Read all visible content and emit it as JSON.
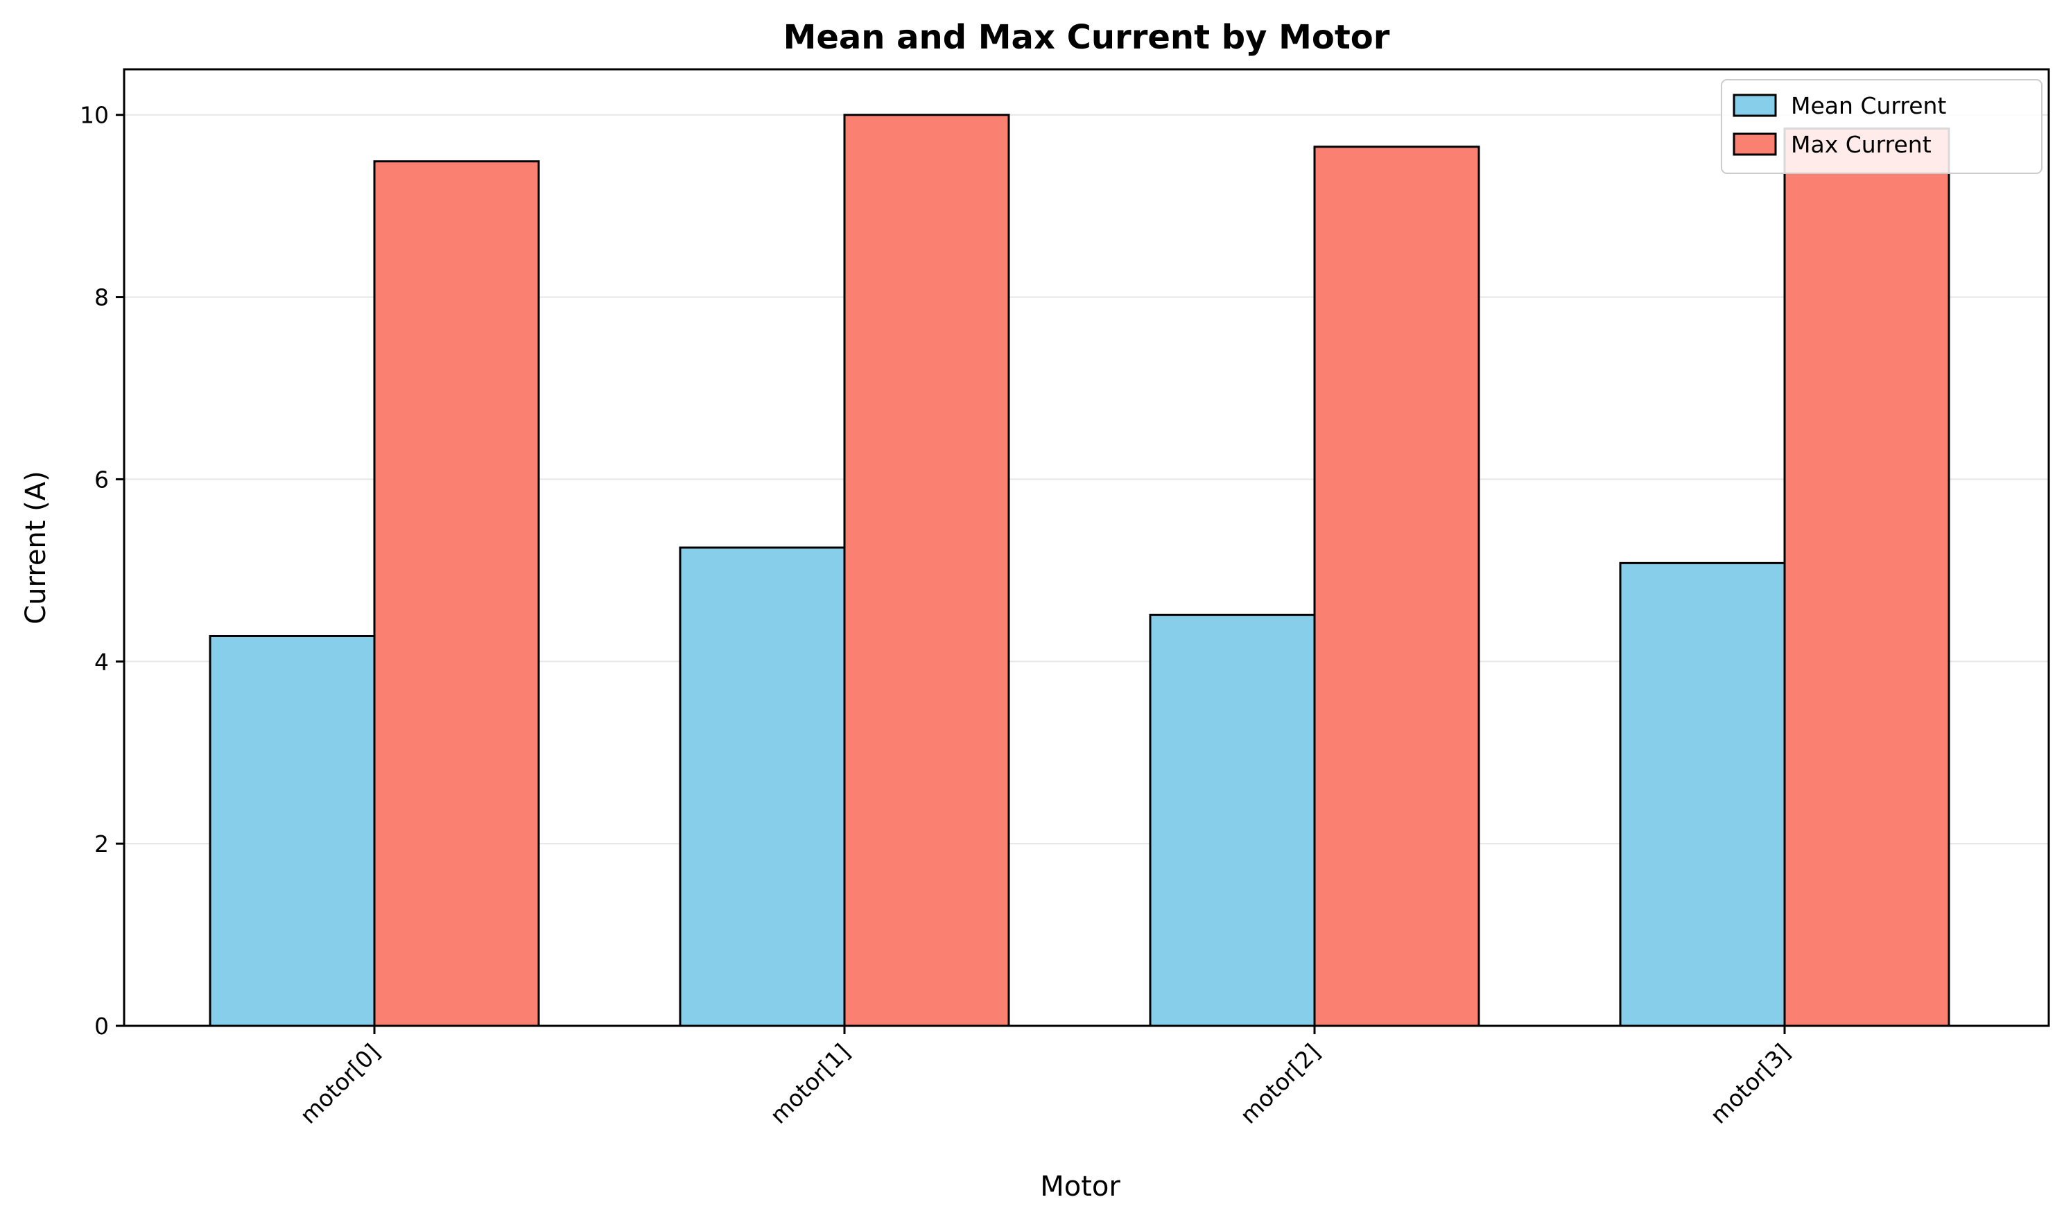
{
  "chart_data": {
    "type": "bar",
    "title": "Mean and Max Current by Motor",
    "xlabel": "Motor",
    "ylabel": "Current (A)",
    "categories": [
      "motor[0]",
      "motor[1]",
      "motor[2]",
      "motor[3]"
    ],
    "series": [
      {
        "name": "Mean Current",
        "values": [
          4.28,
          5.25,
          4.51,
          5.08
        ],
        "color": "#87CEEB"
      },
      {
        "name": "Max Current",
        "values": [
          9.49,
          10.0,
          9.65,
          9.85
        ],
        "color": "#FA8072"
      }
    ],
    "ylim": [
      0,
      10.5
    ],
    "yticks": [
      0,
      2,
      4,
      6,
      8,
      10
    ],
    "grid": "y",
    "legend": "top-right",
    "x_tick_rotation": "45 degrees"
  }
}
